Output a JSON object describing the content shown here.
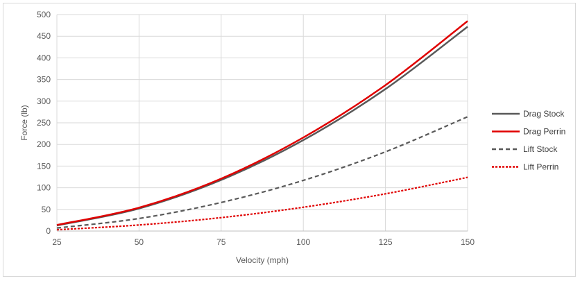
{
  "chart_data": {
    "type": "line",
    "title": "",
    "xlabel": "Velocity (mph)",
    "ylabel": "Force (lb)",
    "xlim": [
      25,
      150
    ],
    "ylim": [
      0,
      500
    ],
    "xticks": [
      25,
      50,
      75,
      100,
      125,
      150
    ],
    "yticks": [
      0,
      50,
      100,
      150,
      200,
      250,
      300,
      350,
      400,
      450,
      500
    ],
    "grid": true,
    "legend_position": "right",
    "x": [
      25,
      50,
      75,
      100,
      125,
      150
    ],
    "series": [
      {
        "name": "Drag Stock",
        "color": "#595959",
        "dash": "solid",
        "values": [
          13,
          52,
          118,
          210,
          328,
          472
        ]
      },
      {
        "name": "Drag Perrin",
        "color": "#e00000",
        "dash": "solid",
        "values": [
          14,
          54,
          121,
          216,
          337,
          485
        ]
      },
      {
        "name": "Lift Stock",
        "color": "#595959",
        "dash": "dashed",
        "values": [
          7,
          29,
          66,
          117,
          183,
          264
        ]
      },
      {
        "name": "Lift Perrin",
        "color": "#e00000",
        "dash": "dotted",
        "values": [
          3,
          14,
          31,
          55,
          86,
          124
        ]
      }
    ]
  }
}
